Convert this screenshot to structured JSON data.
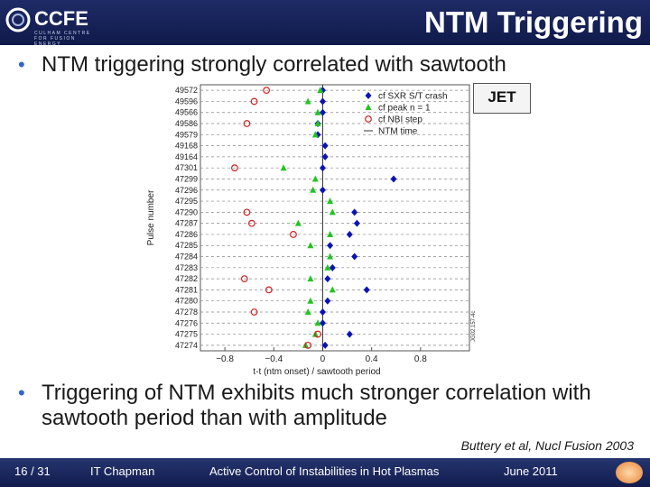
{
  "header": {
    "logo_text": "CCFE",
    "logo_subtext": "CULHAM CENTRE FOR FUSION ENERGY",
    "title": "NTM Triggering"
  },
  "bullets": [
    "NTM triggering strongly correlated with sawtooth",
    "Triggering of NTM exhibits much stronger correlation with sawtooth period than with amplitude"
  ],
  "citation": "Buttery et al, Nucl Fusion 2003",
  "footer": {
    "page": "16 / 31",
    "author": "IT Chapman",
    "topic": "Active Control of Instabilities in Hot Plasmas",
    "date": "June 2011"
  },
  "jet_label": "JET",
  "colors": {
    "header_bg": "#16215a",
    "sxr": "#0a14b4",
    "peak": "#22c422",
    "nbi": "#d02020",
    "bullet": "#3366cc"
  },
  "chart_data": {
    "type": "scatter",
    "xlabel": "t-t (ntm onset) / sawtooth period",
    "ylabel": "Pulse number",
    "xlim": [
      -1.0,
      1.2
    ],
    "x_ticks": [
      "−0.8",
      "−0.4",
      "0",
      "0.4",
      "0.8"
    ],
    "x_tick_values": [
      -0.8,
      -0.4,
      0,
      0.4,
      0.8
    ],
    "categories": [
      "49572",
      "49596",
      "49566",
      "49586",
      "49579",
      "49168",
      "49164",
      "47301",
      "47299",
      "47296",
      "47295",
      "47290",
      "47287",
      "47286",
      "47285",
      "47284",
      "47283",
      "47282",
      "47281",
      "47280",
      "47278",
      "47276",
      "47275",
      "47274"
    ],
    "series": [
      {
        "name": "cf SXR S/T crash",
        "marker": "diamond",
        "values": [
          0.0,
          0.0,
          0.0,
          -0.04,
          -0.04,
          0.02,
          0.02,
          0.0,
          0.58,
          0.0,
          null,
          0.26,
          0.28,
          0.22,
          0.06,
          0.26,
          0.08,
          0.04,
          0.36,
          0.04,
          0.0,
          0.0,
          0.22,
          0.02
        ]
      },
      {
        "name": "cf peak n = 1",
        "marker": "triangle",
        "values": [
          -0.02,
          -0.12,
          -0.04,
          -0.04,
          -0.06,
          null,
          null,
          -0.32,
          -0.06,
          -0.08,
          0.06,
          0.08,
          -0.2,
          0.06,
          -0.1,
          0.06,
          0.04,
          -0.1,
          0.08,
          -0.1,
          -0.12,
          -0.04,
          -0.06,
          -0.14
        ]
      },
      {
        "name": "cf NBI step",
        "marker": "circle",
        "values": [
          -0.46,
          -0.56,
          null,
          -0.62,
          null,
          null,
          null,
          -0.72,
          null,
          null,
          null,
          -0.62,
          -0.58,
          -0.24,
          null,
          null,
          null,
          -0.64,
          -0.44,
          null,
          -0.56,
          null,
          -0.04,
          -0.12
        ]
      },
      {
        "name": "NTM time",
        "marker": "line",
        "value": 0
      }
    ],
    "side_label": "JG02.157-4c",
    "grid": "horizontal-dashed",
    "legend": "top-right"
  }
}
